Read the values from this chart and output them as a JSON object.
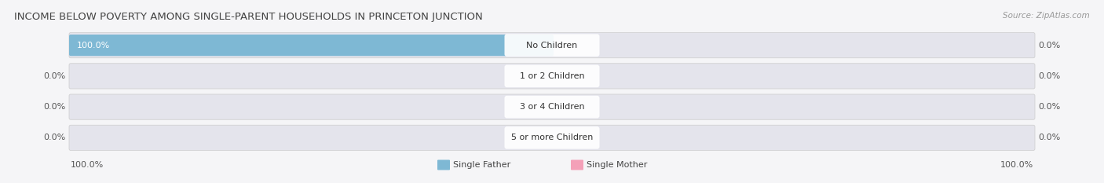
{
  "title": "INCOME BELOW POVERTY AMONG SINGLE-PARENT HOUSEHOLDS IN PRINCETON JUNCTION",
  "source": "Source: ZipAtlas.com",
  "categories": [
    "No Children",
    "1 or 2 Children",
    "3 or 4 Children",
    "5 or more Children"
  ],
  "single_father": [
    100.0,
    0.0,
    0.0,
    0.0
  ],
  "single_mother": [
    0.0,
    0.0,
    0.0,
    0.0
  ],
  "father_color": "#7eb8d4",
  "mother_color": "#f4a0b8",
  "bar_bg_color": "#e4e4ec",
  "background_color": "#f5f5f7",
  "title_color": "#444444",
  "label_color": "#555555",
  "axis_label_left": "100.0%",
  "axis_label_right": "100.0%",
  "title_fontsize": 9.5,
  "label_fontsize": 8.0,
  "source_fontsize": 7.5
}
